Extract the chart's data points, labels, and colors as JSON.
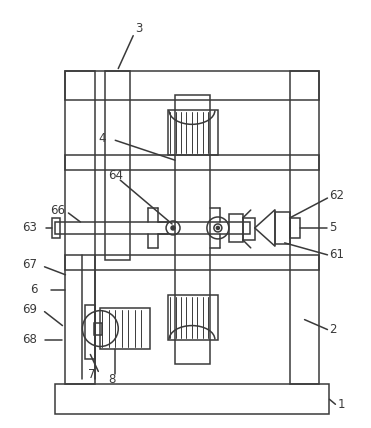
{
  "bg_color": "#ffffff",
  "line_color": "#3a3a3a",
  "lw": 1.1,
  "fig_w": 3.71,
  "fig_h": 4.28
}
